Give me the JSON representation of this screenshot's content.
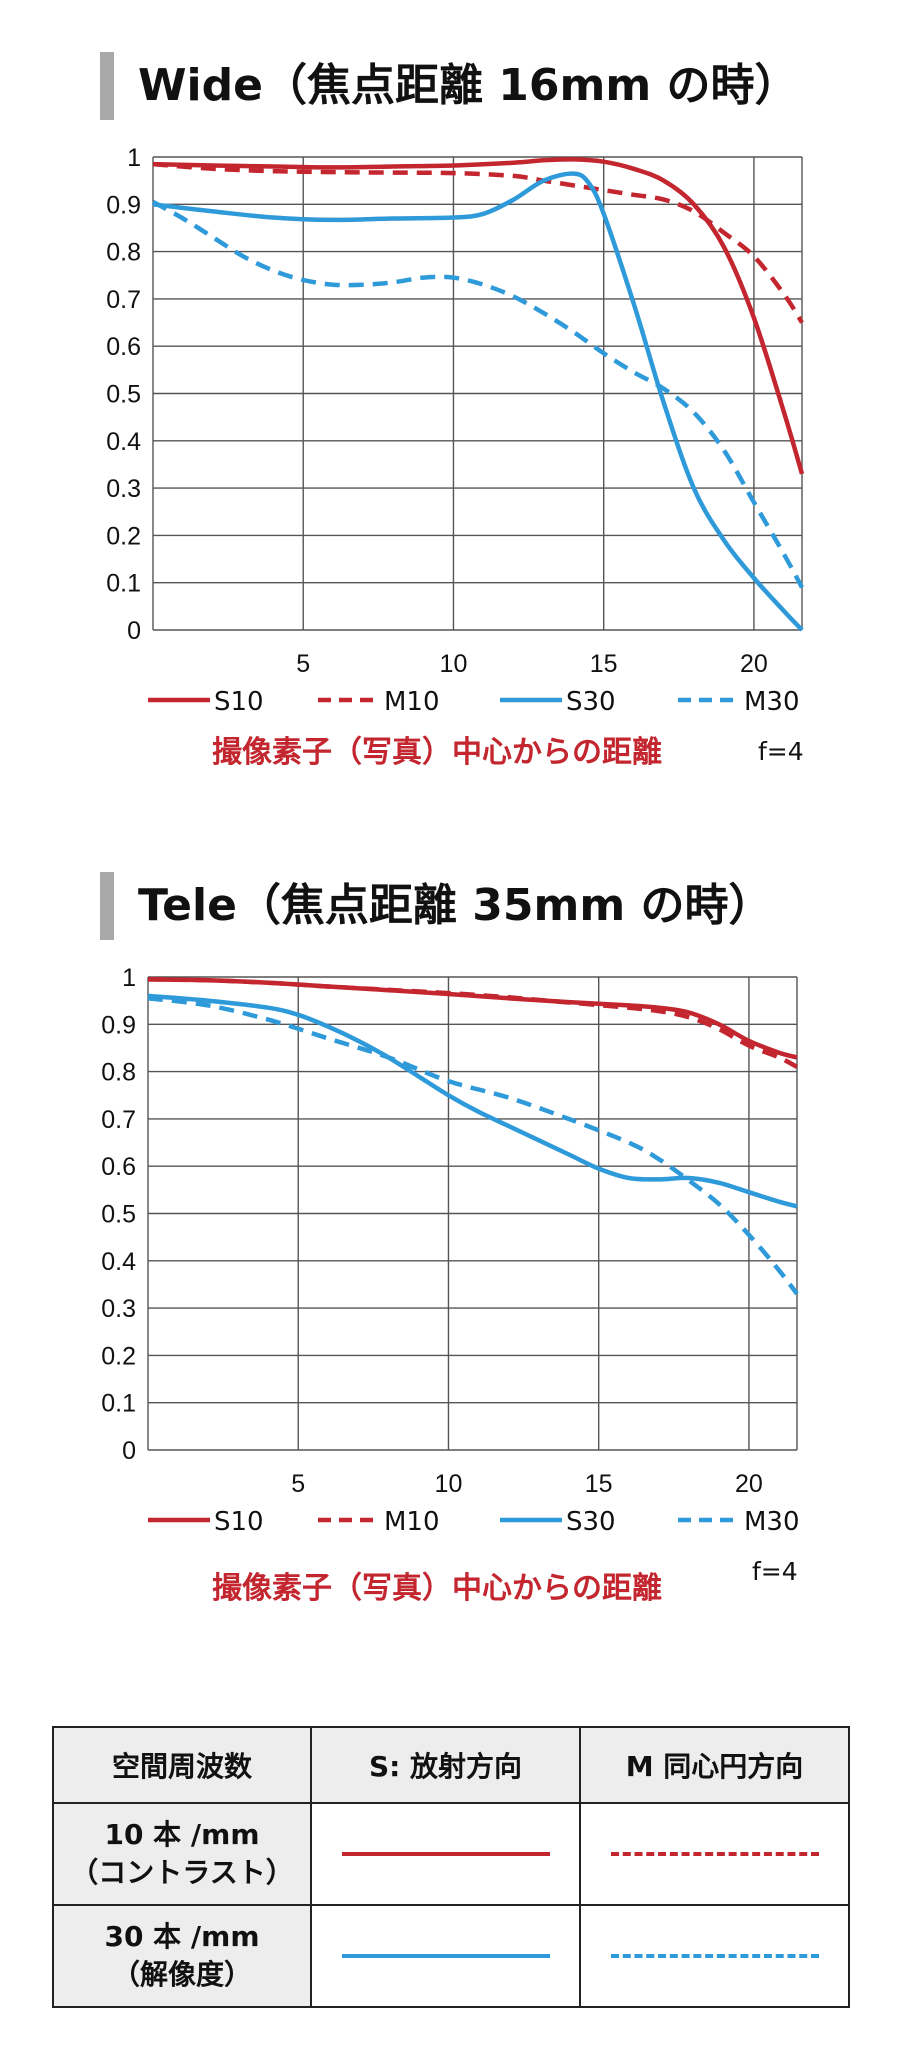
{
  "colors": {
    "S10": "#c3262f",
    "M10": "#c3262f",
    "S30": "#2f9ad9",
    "M30": "#2f9ad9",
    "grid": "#555555",
    "title_bar": "#a9a9a9",
    "caption": "#c3262f"
  },
  "chart_data": [
    {
      "type": "line",
      "title": "Wide（焦点距離 16mm の時）",
      "xlabel": "撮像素子（写真）中心からの距離",
      "ylabel": "",
      "annotation": "f=4",
      "xlim": [
        0,
        21.6
      ],
      "ylim": [
        0,
        1
      ],
      "xticks": [
        5,
        10,
        15,
        20
      ],
      "yticks": [
        0,
        0.1,
        0.2,
        0.3,
        0.4,
        0.5,
        0.6,
        0.7,
        0.8,
        0.9,
        1
      ],
      "ytick_labels": [
        "0",
        "0.1",
        "0.2",
        "0.3",
        "0.4",
        "0.5",
        "0.6",
        "0.7",
        "0.8",
        "0.9",
        "1"
      ],
      "grid": true,
      "legend": "bottom",
      "series": [
        {
          "name": "S10",
          "style": "solid",
          "x": [
            0,
            2,
            4,
            6,
            8,
            10,
            12,
            13,
            14,
            15,
            16,
            17,
            18,
            19,
            20,
            21,
            21.6
          ],
          "y": [
            0.985,
            0.982,
            0.98,
            0.978,
            0.98,
            0.982,
            0.988,
            0.993,
            0.995,
            0.99,
            0.975,
            0.95,
            0.9,
            0.81,
            0.66,
            0.46,
            0.33
          ]
        },
        {
          "name": "M10",
          "style": "dashed",
          "x": [
            0,
            2,
            4,
            6,
            8,
            10,
            12,
            13,
            14,
            15,
            16,
            17,
            18,
            19,
            20,
            21,
            21.6
          ],
          "y": [
            0.985,
            0.975,
            0.97,
            0.968,
            0.967,
            0.966,
            0.96,
            0.95,
            0.94,
            0.93,
            0.92,
            0.91,
            0.885,
            0.84,
            0.79,
            0.71,
            0.65
          ]
        },
        {
          "name": "S30",
          "style": "solid",
          "x": [
            0,
            2,
            4,
            6,
            8,
            10,
            11,
            12,
            13,
            14,
            14.5,
            15,
            16,
            17,
            18,
            19,
            20,
            21,
            21.6
          ],
          "y": [
            0.9,
            0.885,
            0.872,
            0.867,
            0.87,
            0.872,
            0.88,
            0.91,
            0.95,
            0.965,
            0.945,
            0.88,
            0.69,
            0.48,
            0.3,
            0.19,
            0.11,
            0.04,
            0.0
          ]
        },
        {
          "name": "M30",
          "style": "dashed",
          "x": [
            0,
            1,
            2,
            3,
            4,
            5,
            6,
            7,
            8,
            9,
            10,
            11,
            12,
            13,
            14,
            15,
            16,
            17,
            18,
            19,
            20,
            21,
            21.6
          ],
          "y": [
            0.905,
            0.87,
            0.83,
            0.79,
            0.76,
            0.74,
            0.73,
            0.73,
            0.735,
            0.745,
            0.745,
            0.73,
            0.705,
            0.67,
            0.63,
            0.585,
            0.545,
            0.51,
            0.46,
            0.38,
            0.27,
            0.16,
            0.09
          ]
        }
      ]
    },
    {
      "type": "line",
      "title": "Tele（焦点距離 35mm の時）",
      "xlabel": "撮像素子（写真）中心からの距離",
      "ylabel": "",
      "annotation": "f=4",
      "xlim": [
        0,
        21.6
      ],
      "ylim": [
        0,
        1
      ],
      "xticks": [
        5,
        10,
        15,
        20
      ],
      "yticks": [
        0,
        0.1,
        0.2,
        0.3,
        0.4,
        0.5,
        0.6,
        0.7,
        0.8,
        0.9,
        1
      ],
      "ytick_labels": [
        "0",
        "0.1",
        "0.2",
        "0.3",
        "0.4",
        "0.5",
        "0.6",
        "0.7",
        "0.8",
        "0.9",
        "1"
      ],
      "grid": true,
      "legend": "bottom",
      "series": [
        {
          "name": "S10",
          "style": "solid",
          "x": [
            0,
            2,
            4,
            6,
            8,
            10,
            12,
            14,
            16,
            17,
            18,
            19,
            20,
            21,
            21.6
          ],
          "y": [
            0.995,
            0.993,
            0.988,
            0.98,
            0.972,
            0.964,
            0.955,
            0.947,
            0.94,
            0.935,
            0.925,
            0.9,
            0.865,
            0.84,
            0.83
          ]
        },
        {
          "name": "M10",
          "style": "dashed",
          "x": [
            0,
            2,
            4,
            6,
            8,
            10,
            12,
            14,
            16,
            17,
            18,
            19,
            20,
            21,
            21.6
          ],
          "y": [
            0.995,
            0.993,
            0.988,
            0.98,
            0.973,
            0.966,
            0.957,
            0.946,
            0.935,
            0.928,
            0.915,
            0.89,
            0.855,
            0.83,
            0.81
          ]
        },
        {
          "name": "S30",
          "style": "solid",
          "x": [
            0,
            2,
            4,
            5,
            6,
            7,
            8,
            9,
            10,
            11,
            12,
            13,
            14,
            15,
            16,
            17,
            18,
            19,
            20,
            21,
            21.6
          ],
          "y": [
            0.96,
            0.95,
            0.935,
            0.92,
            0.895,
            0.865,
            0.83,
            0.79,
            0.75,
            0.715,
            0.685,
            0.655,
            0.625,
            0.595,
            0.575,
            0.572,
            0.575,
            0.565,
            0.545,
            0.525,
            0.515
          ]
        },
        {
          "name": "M30",
          "style": "dashed",
          "x": [
            0,
            2,
            4,
            6,
            8,
            10,
            12,
            14,
            16,
            17,
            18,
            19,
            20,
            21,
            21.6
          ],
          "y": [
            0.955,
            0.94,
            0.91,
            0.87,
            0.83,
            0.78,
            0.745,
            0.7,
            0.65,
            0.615,
            0.57,
            0.52,
            0.455,
            0.38,
            0.33
          ]
        }
      ]
    }
  ],
  "legend_table": {
    "headers": [
      "空間周波数",
      "S: 放射方向",
      "M 同心円方向"
    ],
    "rows": [
      {
        "label_line1": "10 本 /mm",
        "label_line2": "（コントラスト）",
        "s_series": "S10",
        "m_series": "M10"
      },
      {
        "label_line1": "30 本 /mm",
        "label_line2": "（解像度）",
        "s_series": "S30",
        "m_series": "M30"
      }
    ]
  }
}
